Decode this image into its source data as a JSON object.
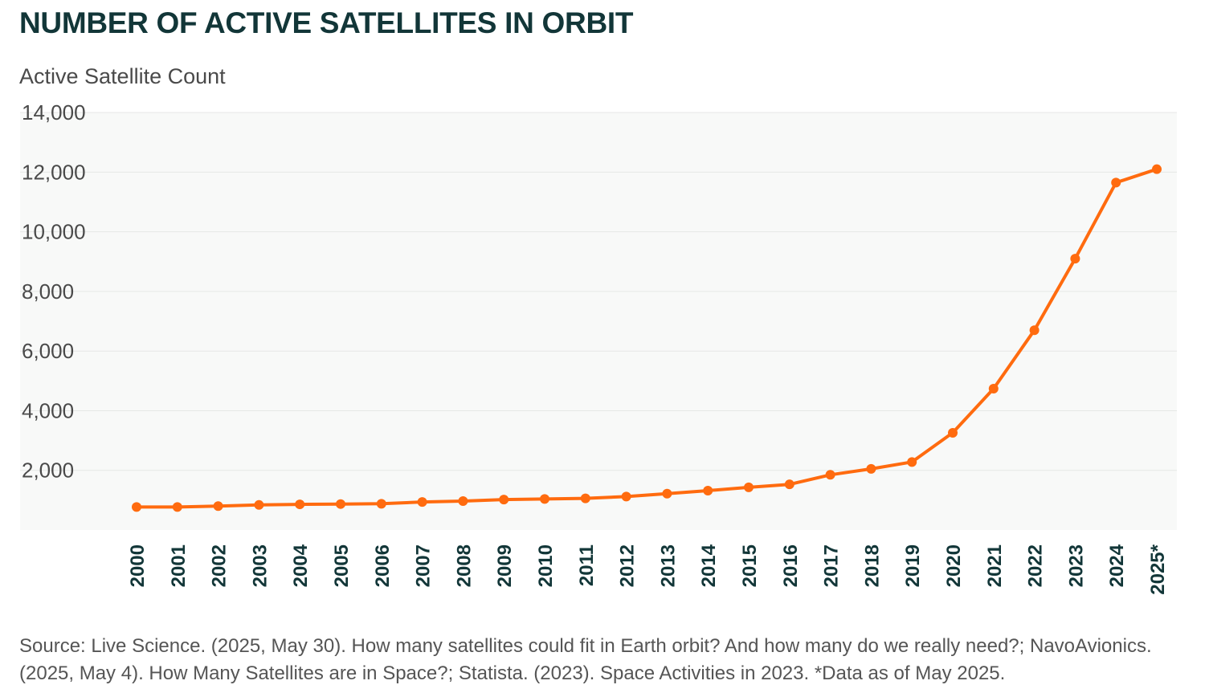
{
  "header": {
    "title": "NUMBER OF ACTIVE SATELLITES IN ORBIT",
    "subtitle": "Active Satellite Count"
  },
  "footer": {
    "source": "Source: Live Science. (2025, May 30). How many satellites could fit in Earth orbit? And how many do we really need?; NavoAvionics. (2025, May 4). How Many Satellites are in Space?; Statista. (2023). Space Activities in 2023. *Data as of May 2025."
  },
  "colors": {
    "line": "#FF6B0F",
    "plot_background": "#F8F9F8",
    "gridline": "#E6E8E6",
    "axis_text": "#4a4a4a",
    "x_tick_text": "#123638"
  },
  "chart_data": {
    "type": "line",
    "title": "NUMBER OF ACTIVE SATELLITES IN ORBIT",
    "ylabel": "Active Satellite Count",
    "xlabel": "",
    "ylim": [
      0,
      14000
    ],
    "yticks": [
      2000,
      4000,
      6000,
      8000,
      10000,
      12000,
      14000
    ],
    "ytick_labels": [
      "2,000",
      "4,000",
      "6,000",
      "8,000",
      "10,000",
      "12,000",
      "14,000"
    ],
    "grid": true,
    "legend": "none",
    "categories": [
      "2000",
      "2001",
      "2002",
      "2003",
      "2004",
      "2005",
      "2006",
      "2007",
      "2008",
      "2009",
      "2010",
      "2011",
      "2012",
      "2013",
      "2014",
      "2015",
      "2016",
      "2017",
      "2018",
      "2019",
      "2020",
      "2021",
      "2022",
      "2023",
      "2024",
      "2025*"
    ],
    "series": [
      {
        "name": "Active Satellite Count",
        "values": [
          770,
          770,
          800,
          840,
          860,
          870,
          880,
          940,
          970,
          1020,
          1040,
          1060,
          1120,
          1220,
          1320,
          1430,
          1530,
          1850,
          2050,
          2280,
          3260,
          4740,
          6700,
          9100,
          11650,
          12100
        ]
      }
    ]
  }
}
